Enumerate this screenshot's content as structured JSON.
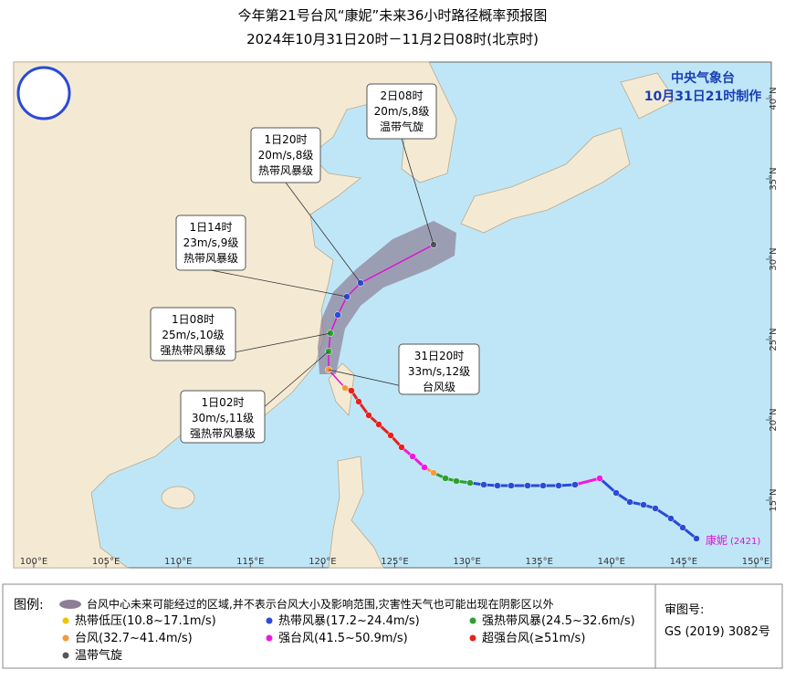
{
  "title": {
    "line1": "今年第21号台风“康妮”未来36小时路径概率预报图",
    "line2": "2024年10月31日20时－11月2日08时(北京时)"
  },
  "issuer": {
    "agency": "中央气象台",
    "made": "10月31日21时制作"
  },
  "storm": {
    "name": "康妮",
    "code": "(2421)"
  },
  "callouts": [
    {
      "time": "2日08时",
      "speed": "20m/s,8级",
      "grade": "温带气旋"
    },
    {
      "time": "1日20时",
      "speed": "20m/s,8级",
      "grade": "热带风暴级"
    },
    {
      "time": "1日14时",
      "speed": "23m/s,9级",
      "grade": "热带风暴级"
    },
    {
      "time": "1日08时",
      "speed": "25m/s,10级",
      "grade": "强热带风暴级"
    },
    {
      "time": "31日20时",
      "speed": "33m/s,12级",
      "grade": "台风级"
    },
    {
      "time": "1日02时",
      "speed": "30m/s,11级",
      "grade": "强热带风暴级"
    }
  ],
  "axes": {
    "longitude": [
      "100°E",
      "105°E",
      "110°E",
      "115°E",
      "120°E",
      "125°E",
      "130°E",
      "135°E",
      "140°E",
      "145°E",
      "150°E"
    ],
    "latitude": [
      "15°N",
      "20°N",
      "25°N",
      "30°N",
      "35°N",
      "40°N"
    ]
  },
  "legend": {
    "title": "图例:",
    "cone": "台风中心未来可能经过的区域,并不表示台风大小及影响范围,灾害性天气也可能出现在阴影区以外",
    "items": [
      {
        "label": "热带低压(10.8~17.1m/s)",
        "color": "#f2c200"
      },
      {
        "label": "热带风暴(17.2~24.4m/s)",
        "color": "#2a4bd7"
      },
      {
        "label": "强热带风暴(24.5~32.6m/s)",
        "color": "#2ea02e"
      },
      {
        "label": "台风(32.7~41.4m/s)",
        "color": "#f39a3c"
      },
      {
        "label": "强台风(41.5~50.9m/s)",
        "color": "#f018e0"
      },
      {
        "label": "超强台风(≥51m/s)",
        "color": "#e8201c"
      },
      {
        "label": "温带气旋",
        "color": "#555555"
      }
    ]
  },
  "review": {
    "label": "审图号:",
    "number": "GS (2019) 3082号"
  }
}
